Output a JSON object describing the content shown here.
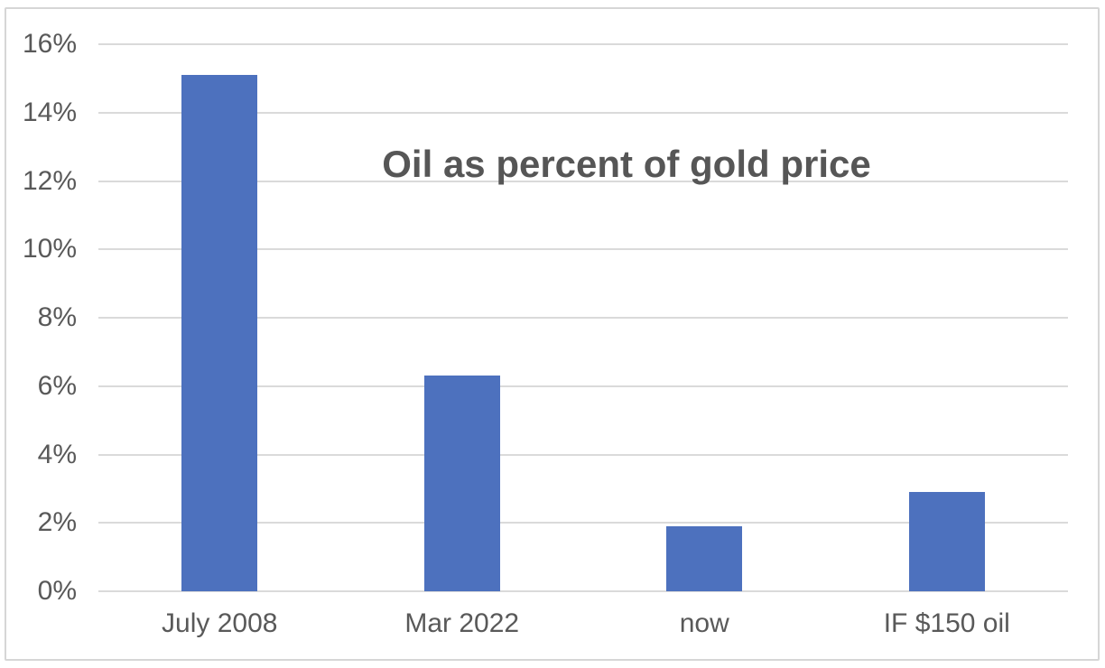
{
  "chart_data": {
    "type": "bar",
    "title": "Oil as percent of gold price",
    "categories": [
      "July 2008",
      "Mar 2022",
      "now",
      "IF $150 oil"
    ],
    "values": [
      15.1,
      6.3,
      1.9,
      2.9
    ],
    "y_ticks": [
      "0%",
      "2%",
      "4%",
      "6%",
      "8%",
      "10%",
      "12%",
      "14%",
      "16%"
    ],
    "y_tick_values": [
      0,
      2,
      4,
      6,
      8,
      10,
      12,
      14,
      16
    ],
    "ylim": [
      0,
      16
    ],
    "xlabel": "",
    "ylabel": "",
    "grid": true,
    "legend_position": "none",
    "bar_color": "#4d71be",
    "gridline_color": "#dadada",
    "axis_label_color": "#595959",
    "title_color": "#565656",
    "frame_border_color": "#d6d6d6",
    "background_color": "#ffffff"
  }
}
